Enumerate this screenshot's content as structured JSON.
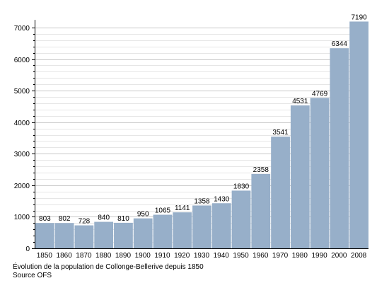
{
  "chart_data": {
    "type": "bar",
    "title": "",
    "xlabel": "",
    "ylabel": "",
    "categories": [
      "1850",
      "1860",
      "1870",
      "1880",
      "1890",
      "1900",
      "1910",
      "1920",
      "1930",
      "1940",
      "1950",
      "1960",
      "1970",
      "1980",
      "1990",
      "2000",
      "2008"
    ],
    "values": [
      803,
      802,
      728,
      840,
      810,
      950,
      1065,
      1141,
      1358,
      1430,
      1830,
      2358,
      3541,
      4531,
      4769,
      6344,
      7190
    ],
    "ylim": [
      0,
      7200
    ],
    "yticks": [
      0,
      1000,
      2000,
      3000,
      4000,
      5000,
      6000,
      7000
    ],
    "grid": true,
    "bar_color": "#97afc9",
    "grid_color": "#c8c8c8",
    "minor_grid_color": "#e6e6e6"
  },
  "caption": {
    "line1": "Évolution de la population de Collonge-Bellerive depuis 1850",
    "line2": "Source OFS"
  }
}
